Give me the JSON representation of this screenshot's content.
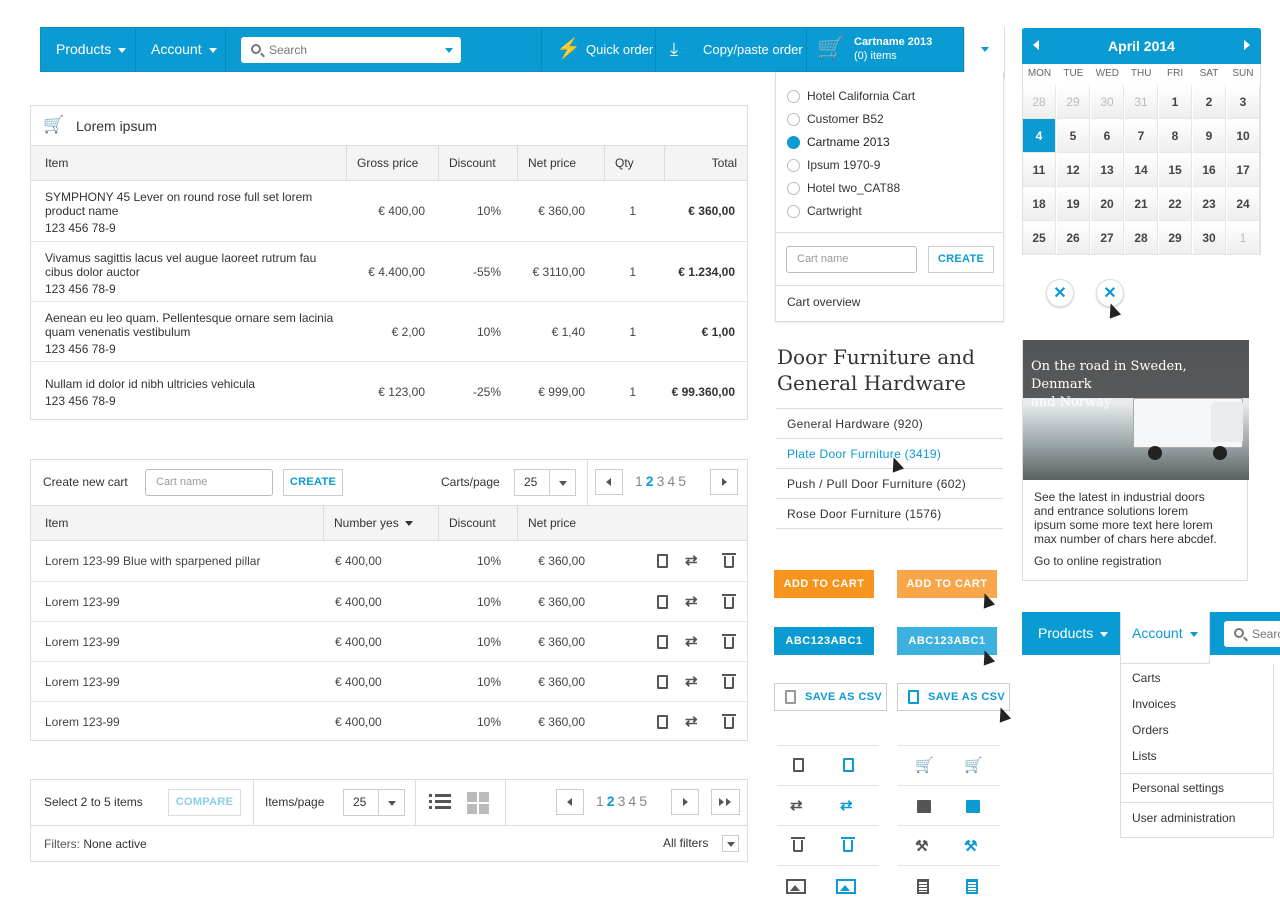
{
  "topnav": {
    "products": "Products",
    "account": "Account",
    "search_placeholder": "Search",
    "quick_order": "Quick order",
    "copy_paste": "Copy/paste order",
    "cart_name": "Cartname 2013",
    "cart_items": "(0) items"
  },
  "cart_dropdown": {
    "items": [
      "Hotel California Cart",
      "Customer B52",
      "Cartname 2013",
      "Ipsum 1970-9",
      "Hotel two_CAT88",
      "Cartwright"
    ],
    "selected": 2,
    "cart_name_placeholder": "Cart name",
    "create": "CREATE",
    "overview": "Cart overview"
  },
  "cart_table": {
    "title": "Lorem ipsum",
    "headers": [
      "Item",
      "Gross price",
      "Discount",
      "Net price",
      "Qty",
      "Total"
    ],
    "rows": [
      {
        "name1": "SYMPHONY 45 Lever on round rose full set lorem",
        "name2": "product name",
        "sku": "123 456 78-9",
        "gross": "€ 400,00",
        "discount": "10%",
        "net": "€ 360,00",
        "qty": "1",
        "total": "€ 360,00"
      },
      {
        "name1": "Vivamus sagittis lacus vel augue laoreet rutrum fau",
        "name2": "cibus dolor auctor",
        "sku": "123 456 78-9",
        "gross": "€ 4.400,00",
        "discount": "-55%",
        "net": "€ 3110,00",
        "qty": "1",
        "total": "€ 1.234,00"
      },
      {
        "name1": "Aenean eu leo quam. Pellentesque ornare sem lacinia",
        "name2": "quam venenatis vestibulum",
        "sku": "123 456 78-9",
        "gross": "€ 2,00",
        "discount": "10%",
        "net": "€ 1,40",
        "qty": "1",
        "total": "€ 1,00"
      },
      {
        "name1": "Nullam id dolor id nibh ultricies vehicula",
        "name2": "",
        "sku": "123 456 78-9",
        "gross": "€ 123,00",
        "discount": "-25%",
        "net": "€ 999,00",
        "qty": "1",
        "total": "€ 99.360,00"
      }
    ]
  },
  "carts_table": {
    "create_label": "Create new cart",
    "cart_name_placeholder": "Cart name",
    "create": "CREATE",
    "per_page_label": "Carts/page",
    "per_page": "25",
    "pages": [
      "1",
      "2",
      "3",
      "4",
      "5"
    ],
    "current_page": "2",
    "headers": [
      "Item",
      "Number yes",
      "Discount",
      "Net price"
    ],
    "rows": [
      {
        "item": "Lorem 123-99 Blue with sparpened pillar",
        "number": "€ 400,00",
        "discount": "10%",
        "net": "€ 360,00"
      },
      {
        "item": "Lorem 123-99",
        "number": "€ 400,00",
        "discount": "10%",
        "net": "€ 360,00"
      },
      {
        "item": "Lorem 123-99",
        "number": "€ 400,00",
        "discount": "10%",
        "net": "€ 360,00"
      },
      {
        "item": "Lorem 123-99",
        "number": "€ 400,00",
        "discount": "10%",
        "net": "€ 360,00"
      },
      {
        "item": "Lorem 123-99",
        "number": "€ 400,00",
        "discount": "10%",
        "net": "€ 360,00"
      }
    ]
  },
  "compare_bar": {
    "select_text": "Select 2 to 5 items",
    "compare": "COMPARE",
    "items_per_page_label": "Items/page",
    "items_per_page": "25",
    "pages": [
      "1",
      "2",
      "3",
      "4",
      "5"
    ],
    "current_page": "2",
    "filters_label": "Filters:",
    "filters_value": "None active",
    "all_filters": "All filters"
  },
  "category": {
    "title1": "Door Furniture and",
    "title2": "General Hardware",
    "items": [
      "General Hardware (920)",
      "Plate Door Furniture (3419)",
      "Push / Pull Door Furniture (602)",
      "Rose Door Furniture (1576)"
    ],
    "hover_index": 1
  },
  "buttons": {
    "add_to_cart": "ADD TO CART",
    "code": "ABC123ABC1",
    "save_csv": "SAVE AS CSV"
  },
  "calendar": {
    "month": "April 2014",
    "dow": [
      "MON",
      "TUE",
      "WED",
      "THU",
      "FRI",
      "SAT",
      "SUN"
    ],
    "weeks": [
      [
        "28",
        "29",
        "30",
        "31",
        "1",
        "2",
        "3"
      ],
      [
        "4",
        "5",
        "6",
        "7",
        "8",
        "9",
        "10"
      ],
      [
        "11",
        "12",
        "13",
        "14",
        "15",
        "16",
        "17"
      ],
      [
        "18",
        "19",
        "20",
        "21",
        "22",
        "23",
        "24"
      ],
      [
        "25",
        "26",
        "27",
        "28",
        "29",
        "30",
        "1"
      ]
    ],
    "selected": "4"
  },
  "promo": {
    "caption1": "On the road in Sweden, Denmark",
    "caption2": "and Norway",
    "text": [
      "See the latest in industrial doors",
      "and entrance solutions lorem",
      "ipsum some more text here lorem",
      "max number of chars here abcdef."
    ],
    "link": "Go to online registration"
  },
  "nav2": {
    "products": "Products",
    "account": "Account",
    "search_placeholder": "Search",
    "menu": [
      "Carts",
      "Invoices",
      "Orders",
      "Lists",
      "Personal settings",
      "User administration"
    ]
  },
  "colors": {
    "primary": "#0b9bd3",
    "orange": "#f7941d"
  }
}
